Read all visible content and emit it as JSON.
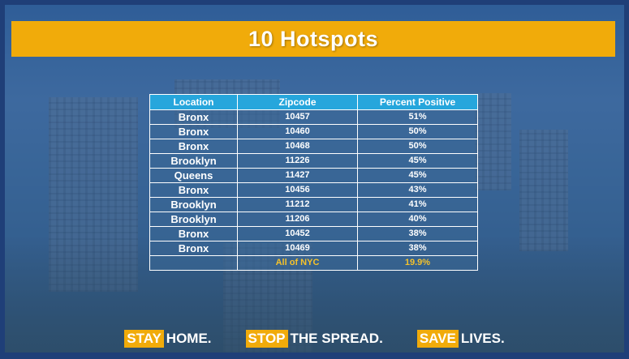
{
  "title": "10 Hotspots",
  "table": {
    "headers": [
      "Location",
      "Zipcode",
      "Percent Positive"
    ],
    "rows": [
      [
        "Bronx",
        "10457",
        "51%"
      ],
      [
        "Bronx",
        "10460",
        "50%"
      ],
      [
        "Bronx",
        "10468",
        "50%"
      ],
      [
        "Brooklyn",
        "11226",
        "45%"
      ],
      [
        "Queens",
        "11427",
        "45%"
      ],
      [
        "Bronx",
        "10456",
        "43%"
      ],
      [
        "Brooklyn",
        "11212",
        "41%"
      ],
      [
        "Brooklyn",
        "11206",
        "40%"
      ],
      [
        "Bronx",
        "10452",
        "38%"
      ],
      [
        "Bronx",
        "10469",
        "38%"
      ]
    ],
    "total": [
      "",
      "All of NYC",
      "19.9%"
    ]
  },
  "slogans": [
    {
      "highlight": "STAY",
      "rest": "HOME."
    },
    {
      "highlight": "STOP",
      "rest": "THE SPREAD."
    },
    {
      "highlight": "SAVE",
      "rest": "LIVES."
    }
  ],
  "colors": {
    "banner": "#f1ab0a",
    "header": "#26a6dc",
    "total_text": "#f5c22b"
  }
}
